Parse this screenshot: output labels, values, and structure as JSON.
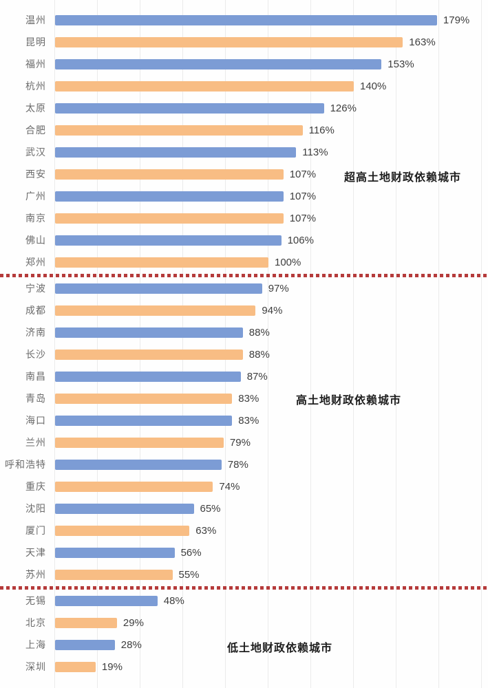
{
  "chart_data": {
    "type": "bar",
    "orientation": "horizontal",
    "title": "",
    "xlabel": "",
    "ylabel": "",
    "value_suffix": "%",
    "xlim": [
      0,
      200
    ],
    "gridline_step": 20,
    "grid": true,
    "legend": false,
    "series_colors": [
      "#7c9cd5",
      "#f8bd84"
    ],
    "categories": [
      "温州",
      "昆明",
      "福州",
      "杭州",
      "太原",
      "合肥",
      "武汉",
      "西安",
      "广州",
      "南京",
      "佛山",
      "郑州",
      "宁波",
      "成都",
      "济南",
      "长沙",
      "南昌",
      "青岛",
      "海口",
      "兰州",
      "呼和浩特",
      "重庆",
      "沈阳",
      "厦门",
      "天津",
      "苏州",
      "无锡",
      "北京",
      "上海",
      "深圳"
    ],
    "values": [
      179,
      163,
      153,
      140,
      126,
      116,
      113,
      107,
      107,
      107,
      106,
      100,
      97,
      94,
      88,
      88,
      87,
      83,
      83,
      79,
      78,
      74,
      65,
      63,
      56,
      55,
      48,
      29,
      28,
      19
    ],
    "dividers_after_index": [
      11,
      25
    ],
    "divider_color": "#b53b3b",
    "groups": [
      {
        "label": "超高土地财政依赖城市"
      },
      {
        "label": "高土地财政依赖城市"
      },
      {
        "label": "低土地财政依赖城市"
      }
    ]
  }
}
